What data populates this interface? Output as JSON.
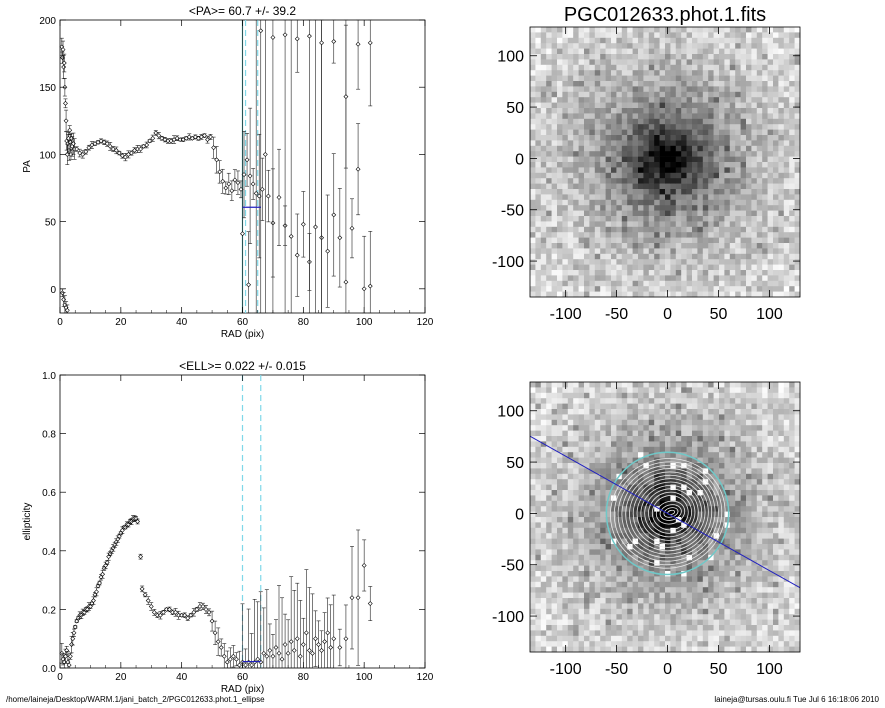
{
  "footer": {
    "left": "/home/laineja/Desktop/WARM.1/jani_batch_2/PGC012633.phot.1_ellipse",
    "right": "laineja@tursas.oulu.fi  Tue Jul  6 16:18:06 2010"
  },
  "chart_data": [
    {
      "type": "scatter",
      "title": "<PA>=  60.7 +/-  39.2",
      "xlabel": "RAD (pix)",
      "ylabel": "PA",
      "xlim": [
        0,
        120
      ],
      "ylim": [
        -18,
        200
      ],
      "xticks": [
        0,
        20,
        40,
        60,
        80,
        100,
        120
      ],
      "yticks": [
        0,
        50,
        100,
        150,
        200
      ],
      "vlines_solid": [
        60
      ],
      "vlines_dashed": [
        61,
        65
      ],
      "mean_segment": {
        "x": [
          60,
          66
        ],
        "y": 60.7
      },
      "points": [
        [
          0.6,
          180
        ],
        [
          0.8,
          172
        ],
        [
          1.0,
          178
        ],
        [
          1.2,
          165
        ],
        [
          1.4,
          168
        ],
        [
          1.6,
          150
        ],
        [
          1.8,
          138
        ],
        [
          2.0,
          125
        ],
        [
          2.2,
          110
        ],
        [
          2.4,
          100
        ],
        [
          2.6,
          108
        ],
        [
          2.8,
          112
        ],
        [
          3.0,
          103
        ],
        [
          3.2,
          118
        ],
        [
          3.4,
          109
        ],
        [
          3.6,
          100
        ],
        [
          3.8,
          112
        ],
        [
          4.0,
          106
        ],
        [
          4.4,
          108
        ],
        [
          4.8,
          104
        ],
        [
          0.8,
          -3
        ],
        [
          1.2,
          -8
        ],
        [
          1.6,
          -12
        ],
        [
          2.0,
          -14
        ],
        [
          2.4,
          -16
        ],
        [
          5.5,
          104
        ],
        [
          6.5,
          101
        ],
        [
          7.5,
          100
        ],
        [
          8.5,
          102
        ],
        [
          9.5,
          105
        ],
        [
          10.5,
          107
        ],
        [
          11.5,
          108
        ],
        [
          12.5,
          109
        ],
        [
          13.5,
          110
        ],
        [
          14.5,
          109
        ],
        [
          15.5,
          108
        ],
        [
          16.5,
          106
        ],
        [
          17.5,
          104
        ],
        [
          18.5,
          103
        ],
        [
          19.5,
          101
        ],
        [
          20.5,
          99
        ],
        [
          21.5,
          98
        ],
        [
          22.5,
          100
        ],
        [
          23.5,
          101
        ],
        [
          24.5,
          103
        ],
        [
          25.5,
          104
        ],
        [
          26.5,
          104
        ],
        [
          27.5,
          106
        ],
        [
          28.5,
          107
        ],
        [
          29.5,
          110
        ],
        [
          30.5,
          112
        ],
        [
          31.5,
          116
        ],
        [
          32.5,
          114
        ],
        [
          33.5,
          112
        ],
        [
          34.5,
          111
        ],
        [
          35.5,
          110
        ],
        [
          36.5,
          110
        ],
        [
          37.5,
          111
        ],
        [
          38.5,
          112
        ],
        [
          39.5,
          111
        ],
        [
          40.5,
          111
        ],
        [
          41.5,
          112
        ],
        [
          42.5,
          113
        ],
        [
          43.5,
          112
        ],
        [
          44.5,
          113
        ],
        [
          45.5,
          112
        ],
        [
          46.5,
          113
        ],
        [
          47.5,
          114
        ],
        [
          48.5,
          111
        ],
        [
          49.5,
          113
        ],
        [
          50.5,
          105
        ],
        [
          51.5,
          96
        ],
        [
          52.5,
          87
        ],
        [
          53.5,
          80
        ],
        [
          54.5,
          75
        ],
        [
          55.5,
          78
        ],
        [
          56.5,
          73
        ],
        [
          57.5,
          81
        ],
        [
          58.5,
          79
        ],
        [
          59.5,
          74
        ],
        [
          60.5,
          85
        ],
        [
          61.5,
          96
        ],
        [
          62.5,
          84
        ],
        [
          63.5,
          78
        ],
        [
          64.5,
          71
        ],
        [
          65.5,
          69
        ],
        [
          66.5,
          74
        ],
        [
          67.5,
          100
        ],
        [
          68.5,
          69
        ],
        [
          70,
          49
        ],
        [
          72,
          68
        ],
        [
          74,
          47
        ],
        [
          76,
          39
        ],
        [
          78,
          25
        ],
        [
          80,
          48
        ],
        [
          82,
          20
        ],
        [
          84,
          46
        ],
        [
          86,
          38
        ],
        [
          88,
          28
        ],
        [
          90,
          55
        ],
        [
          92,
          38
        ],
        [
          94,
          5
        ],
        [
          96,
          45
        ],
        [
          98,
          89
        ],
        [
          100,
          0
        ],
        [
          102,
          2
        ],
        [
          60,
          41
        ],
        [
          62,
          3
        ],
        [
          66,
          192
        ],
        [
          70,
          187
        ],
        [
          74,
          189
        ],
        [
          78,
          186
        ],
        [
          82,
          188
        ],
        [
          86,
          183
        ],
        [
          90,
          184
        ],
        [
          94,
          143
        ],
        [
          98,
          182
        ],
        [
          102,
          183
        ]
      ]
    },
    {
      "type": "scatter",
      "title": "<ELL>= 0.022 +/-  0.015",
      "xlabel": "RAD (pix)",
      "ylabel": "ellipticity",
      "xlim": [
        0,
        120
      ],
      "ylim": [
        0,
        1.0
      ],
      "xticks": [
        0,
        20,
        40,
        60,
        80,
        100,
        120
      ],
      "yticks": [
        0.0,
        0.2,
        0.4,
        0.6,
        0.8,
        1.0
      ],
      "vlines_dashed": [
        60,
        66
      ],
      "mean_segment": {
        "x": [
          60,
          66
        ],
        "y": 0.022
      },
      "points": [
        [
          0.6,
          0.05
        ],
        [
          1.0,
          0.03
        ],
        [
          1.4,
          0.02
        ],
        [
          1.8,
          0.04
        ],
        [
          2.2,
          0.06
        ],
        [
          2.6,
          0.02
        ],
        [
          3.0,
          0.01
        ],
        [
          3.4,
          0.04
        ],
        [
          3.8,
          0.08
        ],
        [
          4.2,
          0.1
        ],
        [
          4.6,
          0.12
        ],
        [
          5.0,
          0.14
        ],
        [
          5.5,
          0.16
        ],
        [
          6.0,
          0.17
        ],
        [
          6.5,
          0.18
        ],
        [
          7.0,
          0.18
        ],
        [
          7.5,
          0.19
        ],
        [
          8.0,
          0.19
        ],
        [
          8.5,
          0.2
        ],
        [
          9.0,
          0.2
        ],
        [
          9.5,
          0.21
        ],
        [
          10.0,
          0.21
        ],
        [
          10.5,
          0.22
        ],
        [
          11.0,
          0.23
        ],
        [
          11.5,
          0.25
        ],
        [
          12.0,
          0.26
        ],
        [
          12.5,
          0.28
        ],
        [
          13.0,
          0.29
        ],
        [
          13.5,
          0.31
        ],
        [
          14.0,
          0.32
        ],
        [
          14.5,
          0.34
        ],
        [
          15.0,
          0.35
        ],
        [
          15.5,
          0.36
        ],
        [
          16.0,
          0.38
        ],
        [
          16.5,
          0.39
        ],
        [
          17.0,
          0.4
        ],
        [
          17.5,
          0.41
        ],
        [
          18.0,
          0.42
        ],
        [
          18.5,
          0.43
        ],
        [
          19.0,
          0.44
        ],
        [
          19.5,
          0.45
        ],
        [
          20.0,
          0.46
        ],
        [
          20.5,
          0.47
        ],
        [
          21.0,
          0.48
        ],
        [
          21.5,
          0.48
        ],
        [
          22.0,
          0.49
        ],
        [
          22.5,
          0.49
        ],
        [
          23.0,
          0.5
        ],
        [
          23.5,
          0.5
        ],
        [
          24.0,
          0.51
        ],
        [
          24.5,
          0.51
        ],
        [
          25.0,
          0.51
        ],
        [
          25.5,
          0.5
        ],
        [
          26.5,
          0.38
        ],
        [
          27.0,
          0.27
        ],
        [
          28.0,
          0.25
        ],
        [
          29.0,
          0.23
        ],
        [
          30.0,
          0.21
        ],
        [
          31.0,
          0.19
        ],
        [
          32.0,
          0.18
        ],
        [
          33.0,
          0.18
        ],
        [
          34.0,
          0.19
        ],
        [
          35.0,
          0.2
        ],
        [
          36.0,
          0.2
        ],
        [
          37.0,
          0.19
        ],
        [
          38.0,
          0.19
        ],
        [
          39.0,
          0.18
        ],
        [
          40.0,
          0.18
        ],
        [
          41.0,
          0.18
        ],
        [
          42.0,
          0.17
        ],
        [
          43.0,
          0.18
        ],
        [
          44.0,
          0.19
        ],
        [
          45.0,
          0.2
        ],
        [
          46.0,
          0.21
        ],
        [
          47.0,
          0.21
        ],
        [
          48.0,
          0.2
        ],
        [
          49.0,
          0.19
        ],
        [
          50.0,
          0.16
        ],
        [
          51.0,
          0.12
        ],
        [
          52.0,
          0.09
        ],
        [
          53.0,
          0.07
        ],
        [
          54.0,
          0.04
        ],
        [
          55.0,
          0.02
        ],
        [
          56.0,
          0.03
        ],
        [
          57.0,
          0.04
        ],
        [
          58.0,
          0.03
        ],
        [
          59.0,
          0.01
        ],
        [
          60.0,
          0.02
        ],
        [
          61.0,
          0.01
        ],
        [
          62.0,
          0.02
        ],
        [
          63.0,
          0.01
        ],
        [
          64.0,
          0.02
        ],
        [
          65.0,
          0.03
        ],
        [
          66.0,
          0.02
        ],
        [
          67.0,
          0.05
        ],
        [
          68.0,
          0.04
        ],
        [
          69.0,
          0.06
        ],
        [
          70.0,
          0.04
        ],
        [
          71.0,
          0.07
        ],
        [
          72.0,
          0.05
        ],
        [
          73.0,
          0.03
        ],
        [
          74.0,
          0.08
        ],
        [
          75.0,
          0.05
        ],
        [
          76.0,
          0.09
        ],
        [
          77.0,
          0.06
        ],
        [
          78.0,
          0.1
        ],
        [
          79.0,
          0.04
        ],
        [
          80.0,
          0.08
        ],
        [
          81.0,
          0.12
        ],
        [
          82.0,
          0.06
        ],
        [
          83.0,
          0.05
        ],
        [
          84.0,
          0.1
        ],
        [
          85.0,
          0.08
        ],
        [
          86.0,
          0.06
        ],
        [
          87.0,
          0.09
        ],
        [
          88.0,
          0.12
        ],
        [
          89.0,
          0.07
        ],
        [
          90.0,
          0.1
        ],
        [
          92.0,
          0.07
        ],
        [
          94.0,
          0.1
        ],
        [
          96.0,
          0.24
        ],
        [
          98.0,
          0.24
        ],
        [
          100.0,
          0.35
        ],
        [
          102.0,
          0.22
        ]
      ]
    },
    {
      "type": "heatmap",
      "title": "PGC012633.phot.1.fits",
      "xlim": [
        -135,
        130
      ],
      "ylim": [
        -135,
        128
      ],
      "xticks": [
        -100,
        -50,
        0,
        50,
        100
      ],
      "yticks": [
        -100,
        -50,
        0,
        50,
        100
      ]
    },
    {
      "type": "heatmap",
      "title": "",
      "xlim": [
        -135,
        130
      ],
      "ylim": [
        -135,
        128
      ],
      "xticks": [
        -100,
        -50,
        0,
        50,
        100
      ],
      "yticks": [
        -100,
        -50,
        0,
        50,
        100
      ],
      "circle_radius": 60,
      "major_axis_pa": 60.7,
      "ellipticity": 0.022
    }
  ]
}
